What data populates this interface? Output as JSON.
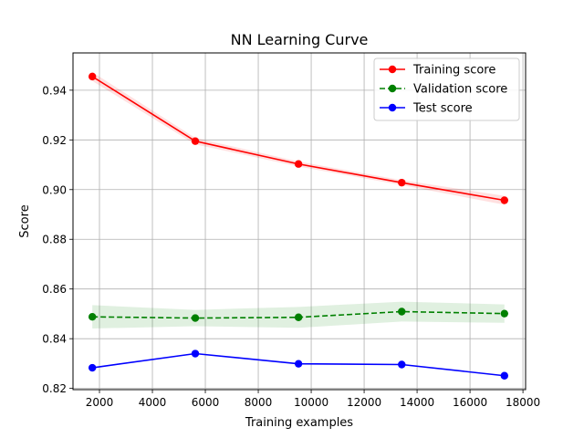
{
  "chart_data": {
    "type": "line",
    "title": "NN Learning Curve",
    "xlabel": "Training examples",
    "ylabel": "Score",
    "xlim": [
      1000,
      18100
    ],
    "ylim": [
      0.8195,
      0.955
    ],
    "x_ticks": [
      2000,
      4000,
      6000,
      8000,
      10000,
      12000,
      14000,
      16000,
      18000
    ],
    "y_ticks": [
      0.82,
      0.84,
      0.86,
      0.88,
      0.9,
      0.92,
      0.94
    ],
    "x_tick_labels": [
      "2000",
      "4000",
      "6000",
      "8000",
      "10000",
      "12000",
      "14000",
      "16000",
      "18000"
    ],
    "y_tick_labels": [
      "0.82",
      "0.84",
      "0.86",
      "0.88",
      "0.90",
      "0.92",
      "0.94"
    ],
    "grid": true,
    "legend_position": "top-right",
    "x": [
      1730,
      5620,
      9520,
      13420,
      17300
    ],
    "series": [
      {
        "name": "Training score",
        "color": "#ff0000",
        "line_style": "solid",
        "values": [
          0.9455,
          0.9195,
          0.9103,
          0.9028,
          0.8957
        ],
        "band": [
          0.0018,
          0.0013,
          0.001,
          0.001,
          0.0018
        ]
      },
      {
        "name": "Validation score",
        "color": "#008000",
        "line_style": "dashed",
        "values": [
          0.8488,
          0.8483,
          0.8486,
          0.8509,
          0.8501
        ],
        "band": [
          0.0047,
          0.0033,
          0.0042,
          0.004,
          0.0037
        ]
      },
      {
        "name": "Test score",
        "color": "#0000ff",
        "line_style": "solid",
        "values": [
          0.8283,
          0.834,
          0.8299,
          0.8296,
          0.8251
        ],
        "band": null
      }
    ]
  }
}
